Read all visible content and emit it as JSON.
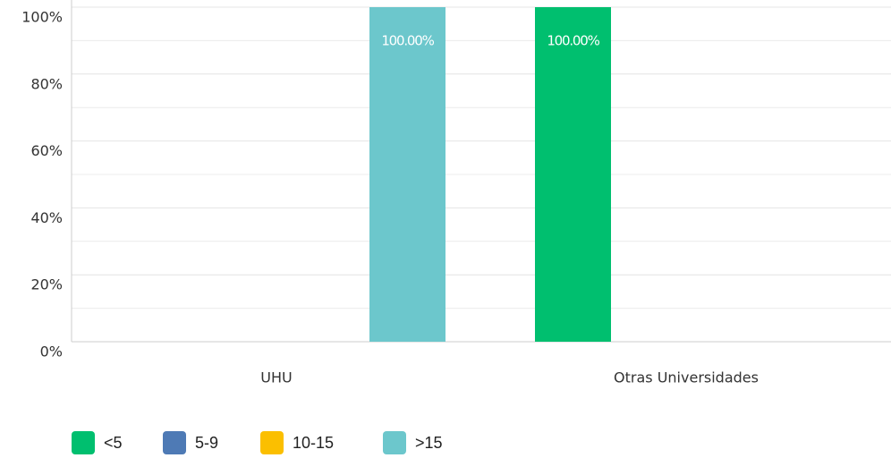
{
  "chart_data": {
    "type": "bar",
    "categories": [
      "UHU",
      "Otras Universidades"
    ],
    "series": [
      {
        "name": "<5",
        "color": "#00bf6f",
        "values": [
          0,
          100
        ],
        "value_labels": [
          null,
          "100.00%"
        ]
      },
      {
        "name": "5-9",
        "color": "#4e7ab5",
        "values": [
          0,
          0
        ],
        "value_labels": [
          null,
          null
        ]
      },
      {
        "name": "10-15",
        "color": "#fbbf00",
        "values": [
          0,
          0
        ],
        "value_labels": [
          null,
          null
        ]
      },
      {
        "name": ">15",
        "color": "#6cc7cc",
        "values": [
          100,
          0
        ],
        "value_labels": [
          "100.00%",
          null
        ]
      }
    ],
    "ylim": [
      0,
      100
    ],
    "yticks": [
      {
        "value": 0,
        "label": "0%"
      },
      {
        "value": 20,
        "label": "20%"
      },
      {
        "value": 40,
        "label": "40%"
      },
      {
        "value": 60,
        "label": "60%"
      },
      {
        "value": 80,
        "label": "80%"
      },
      {
        "value": 100,
        "label": "100%"
      }
    ],
    "minor_yticks": [
      10,
      30,
      50,
      70,
      90
    ],
    "grid": true,
    "legend": "bottom-left"
  }
}
